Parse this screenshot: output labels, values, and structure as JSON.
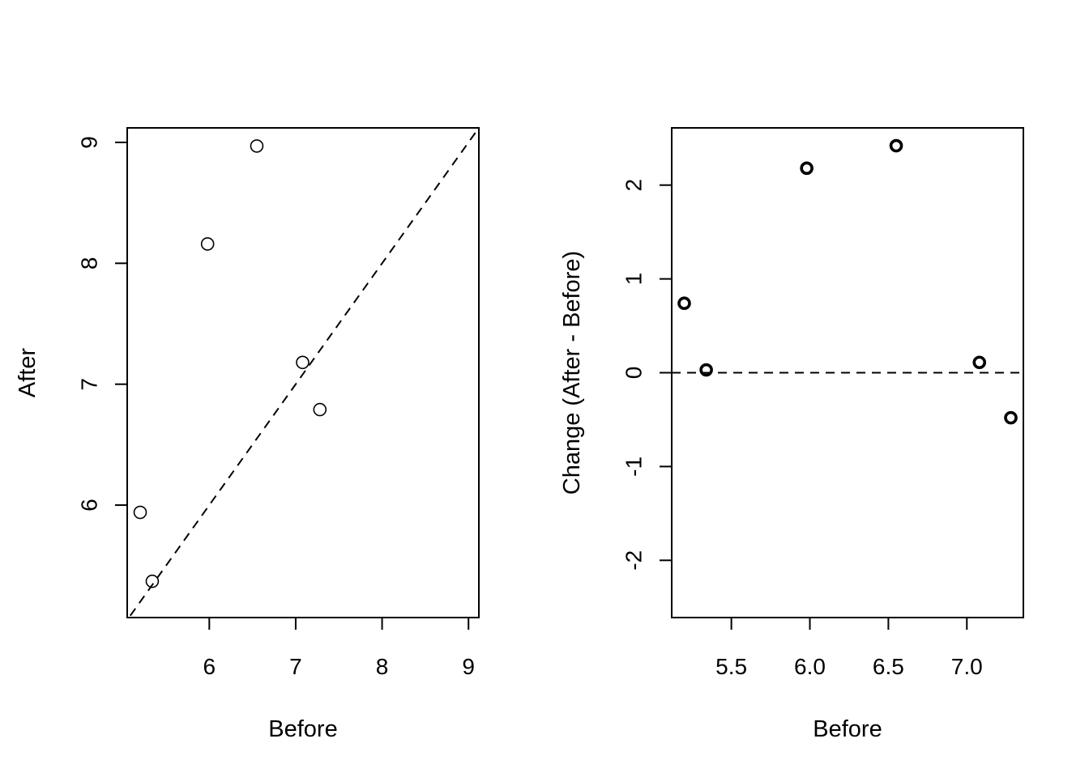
{
  "chart_data": [
    {
      "type": "scatter",
      "xlabel": "Before",
      "ylabel": "After",
      "xlim": [
        5.05,
        9.12
      ],
      "ylim": [
        5.07,
        9.12
      ],
      "xticks": [
        6,
        7,
        8,
        9
      ],
      "yticks": [
        6,
        7,
        8,
        9
      ],
      "xtick_labels": [
        "6",
        "7",
        "8",
        "9"
      ],
      "ytick_labels": [
        "6",
        "7",
        "8",
        "9"
      ],
      "marker": "open-circle",
      "reference_line": {
        "kind": "identity",
        "style": "dashed",
        "slope": 1,
        "intercept": 0
      },
      "points": [
        {
          "x": 5.2,
          "y": 5.94
        },
        {
          "x": 5.34,
          "y": 5.37
        },
        {
          "x": 5.98,
          "y": 8.16
        },
        {
          "x": 6.55,
          "y": 8.97
        },
        {
          "x": 7.08,
          "y": 7.18
        },
        {
          "x": 7.28,
          "y": 6.79
        }
      ]
    },
    {
      "type": "scatter",
      "xlabel": "Before",
      "ylabel": "Change (After - Before)",
      "xlim": [
        5.12,
        7.36
      ],
      "ylim": [
        -2.61,
        2.61
      ],
      "xticks": [
        5.5,
        6.0,
        6.5,
        7.0
      ],
      "yticks": [
        -2,
        -1,
        0,
        1,
        2
      ],
      "xtick_labels": [
        "5.5",
        "6.0",
        "6.5",
        "7.0"
      ],
      "ytick_labels": [
        "-2",
        "-1",
        "0",
        "1",
        "2"
      ],
      "marker": "bold-open-circle",
      "reference_line": {
        "kind": "horizontal",
        "style": "dashed",
        "y": 0
      },
      "points": [
        {
          "x": 5.2,
          "y": 0.74
        },
        {
          "x": 5.34,
          "y": 0.03
        },
        {
          "x": 5.98,
          "y": 2.18
        },
        {
          "x": 6.55,
          "y": 2.42
        },
        {
          "x": 7.08,
          "y": 0.11
        },
        {
          "x": 7.28,
          "y": -0.48
        }
      ]
    }
  ]
}
